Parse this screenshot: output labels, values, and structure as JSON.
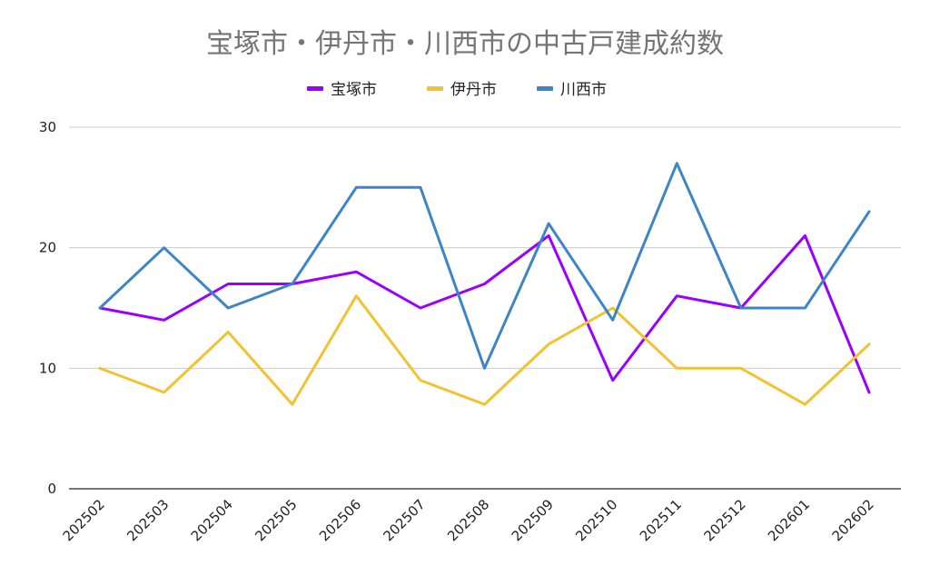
{
  "chart_data": {
    "type": "line",
    "title": "宝塚市・伊丹市・川西市の中古戸建成約数",
    "xlabel": "",
    "ylabel": "",
    "ylim": [
      0,
      30
    ],
    "yticks": [
      0,
      10,
      20,
      30
    ],
    "grid": true,
    "legend_position": "top",
    "categories": [
      "202502",
      "202503",
      "202504",
      "202505",
      "202506",
      "202507",
      "202508",
      "202509",
      "202510",
      "202511",
      "202512",
      "202601",
      "202602"
    ],
    "series": [
      {
        "name": "宝塚市",
        "color": "#9900ff",
        "values": [
          15,
          14,
          17,
          17,
          18,
          15,
          17,
          21,
          9,
          16,
          15,
          21,
          8
        ]
      },
      {
        "name": "伊丹市",
        "color": "#f1c232",
        "values": [
          10,
          8,
          13,
          7,
          16,
          9,
          7,
          12,
          15,
          10,
          10,
          7,
          12
        ]
      },
      {
        "name": "川西市",
        "color": "#3d85c6",
        "values": [
          15,
          20,
          15,
          17,
          25,
          25,
          10,
          22,
          14,
          27,
          15,
          15,
          23
        ]
      }
    ]
  }
}
